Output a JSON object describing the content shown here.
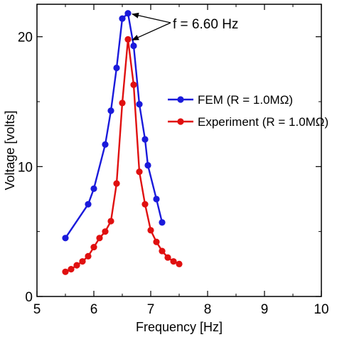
{
  "chart_data": {
    "type": "line",
    "xlabel": "Frequency [Hz]",
    "ylabel": "Voltage [volts]",
    "xlim": [
      5,
      10
    ],
    "ylim": [
      0,
      22.5
    ],
    "xticks": [
      5,
      6,
      7,
      8,
      9,
      10
    ],
    "yticks": [
      0,
      10,
      20
    ],
    "grid": false,
    "legend_position": "center-right",
    "series": [
      {
        "name": "FEM (R = 1.0MΩ)",
        "color": "#1a1adb",
        "x": [
          5.5,
          5.9,
          6.0,
          6.2,
          6.3,
          6.4,
          6.5,
          6.6,
          6.7,
          6.8,
          6.9,
          6.95,
          7.1,
          7.2
        ],
        "y": [
          4.5,
          7.1,
          8.3,
          11.7,
          14.3,
          17.6,
          21.4,
          21.8,
          19.3,
          14.8,
          12.1,
          10.1,
          7.5,
          5.7
        ]
      },
      {
        "name": "Experiment (R = 1.0MΩ)",
        "color": "#e01010",
        "x": [
          5.5,
          5.6,
          5.7,
          5.8,
          5.9,
          6.0,
          6.1,
          6.2,
          6.3,
          6.4,
          6.5,
          6.6,
          6.7,
          6.8,
          6.9,
          7.0,
          7.1,
          7.2,
          7.3,
          7.4,
          7.5
        ],
        "y": [
          1.9,
          2.1,
          2.4,
          2.7,
          3.1,
          3.8,
          4.5,
          5.0,
          5.8,
          8.7,
          14.9,
          19.8,
          16.3,
          9.6,
          7.1,
          5.1,
          4.2,
          3.5,
          3.0,
          2.7,
          2.5
        ]
      }
    ],
    "annotations": [
      {
        "text": "f = 6.60 Hz"
      }
    ]
  }
}
